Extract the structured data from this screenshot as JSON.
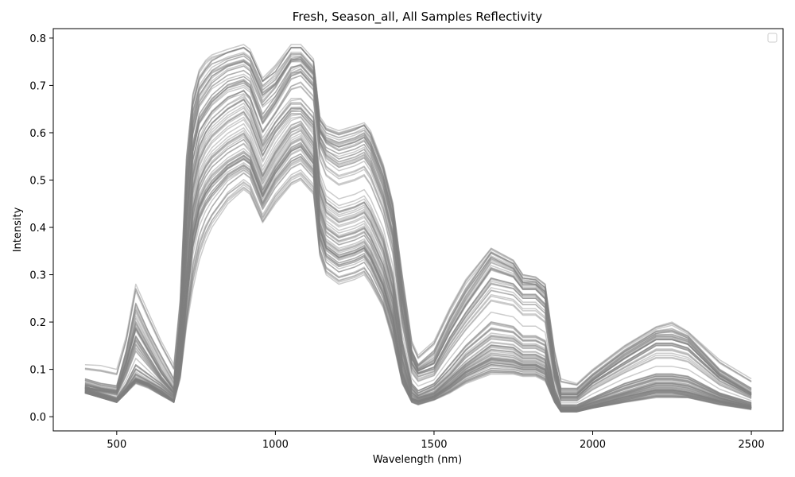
{
  "chart_data": {
    "type": "line",
    "title": "Fresh, Season_all, All Samples Reflectivity",
    "xlabel": "Wavelength (nm)",
    "ylabel": "Intensity",
    "xlim": [
      300,
      2600
    ],
    "ylim": [
      -0.03,
      0.82
    ],
    "xticks": [
      500,
      1000,
      1500,
      2000,
      2500
    ],
    "yticks": [
      0.0,
      0.1,
      0.2,
      0.3,
      0.4,
      0.5,
      0.6,
      0.7,
      0.8
    ],
    "grid": false,
    "legend": {
      "placement": "top-right",
      "entries": []
    },
    "line_color": "#808080",
    "line_alpha": 0.4,
    "series_count": 100,
    "x": [
      400,
      450,
      500,
      530,
      560,
      600,
      640,
      680,
      700,
      720,
      740,
      760,
      780,
      800,
      850,
      900,
      920,
      960,
      1000,
      1050,
      1080,
      1120,
      1140,
      1160,
      1200,
      1250,
      1280,
      1300,
      1340,
      1370,
      1400,
      1430,
      1450,
      1500,
      1550,
      1600,
      1680,
      1750,
      1780,
      1820,
      1850,
      1880,
      1900,
      1950,
      2000,
      2100,
      2200,
      2250,
      2300,
      2400,
      2500
    ],
    "series": [
      {
        "values": [
          0.11,
          0.108,
          0.1,
          0.17,
          0.28,
          0.22,
          0.16,
          0.11,
          0.25,
          0.55,
          0.68,
          0.73,
          0.75,
          0.76,
          0.77,
          0.78,
          0.77,
          0.71,
          0.74,
          0.78,
          0.78,
          0.75,
          0.63,
          0.61,
          0.6,
          0.61,
          0.615,
          0.6,
          0.53,
          0.45,
          0.3,
          0.16,
          0.13,
          0.16,
          0.23,
          0.29,
          0.355,
          0.33,
          0.3,
          0.295,
          0.28,
          0.14,
          0.08,
          0.07,
          0.1,
          0.15,
          0.19,
          0.2,
          0.18,
          0.12,
          0.08
        ]
      },
      {
        "values": [
          0.08,
          0.07,
          0.065,
          0.14,
          0.24,
          0.18,
          0.13,
          0.08,
          0.22,
          0.52,
          0.66,
          0.71,
          0.73,
          0.745,
          0.76,
          0.77,
          0.76,
          0.7,
          0.72,
          0.77,
          0.77,
          0.74,
          0.62,
          0.6,
          0.59,
          0.6,
          0.61,
          0.59,
          0.52,
          0.44,
          0.28,
          0.14,
          0.11,
          0.14,
          0.21,
          0.27,
          0.345,
          0.32,
          0.29,
          0.285,
          0.27,
          0.12,
          0.06,
          0.06,
          0.09,
          0.14,
          0.18,
          0.185,
          0.17,
          0.1,
          0.06
        ]
      },
      {
        "values": [
          0.07,
          0.06,
          0.055,
          0.12,
          0.2,
          0.15,
          0.1,
          0.06,
          0.2,
          0.48,
          0.62,
          0.68,
          0.7,
          0.72,
          0.74,
          0.75,
          0.74,
          0.68,
          0.7,
          0.75,
          0.75,
          0.72,
          0.6,
          0.58,
          0.57,
          0.58,
          0.59,
          0.57,
          0.5,
          0.42,
          0.26,
          0.13,
          0.1,
          0.12,
          0.19,
          0.25,
          0.33,
          0.31,
          0.28,
          0.28,
          0.26,
          0.11,
          0.05,
          0.05,
          0.08,
          0.13,
          0.17,
          0.17,
          0.16,
          0.09,
          0.05
        ]
      },
      {
        "values": [
          0.06,
          0.055,
          0.05,
          0.1,
          0.16,
          0.12,
          0.08,
          0.05,
          0.17,
          0.42,
          0.56,
          0.62,
          0.64,
          0.66,
          0.69,
          0.7,
          0.69,
          0.62,
          0.66,
          0.72,
          0.73,
          0.7,
          0.58,
          0.55,
          0.53,
          0.54,
          0.55,
          0.53,
          0.46,
          0.38,
          0.22,
          0.11,
          0.09,
          0.1,
          0.16,
          0.21,
          0.28,
          0.27,
          0.25,
          0.25,
          0.23,
          0.09,
          0.04,
          0.04,
          0.07,
          0.11,
          0.15,
          0.15,
          0.14,
          0.08,
          0.045
        ]
      },
      {
        "values": [
          0.065,
          0.05,
          0.04,
          0.07,
          0.11,
          0.09,
          0.07,
          0.045,
          0.15,
          0.38,
          0.52,
          0.58,
          0.61,
          0.63,
          0.66,
          0.68,
          0.66,
          0.58,
          0.62,
          0.66,
          0.66,
          0.63,
          0.5,
          0.46,
          0.44,
          0.45,
          0.46,
          0.44,
          0.38,
          0.3,
          0.16,
          0.07,
          0.055,
          0.07,
          0.11,
          0.15,
          0.2,
          0.19,
          0.17,
          0.17,
          0.16,
          0.06,
          0.025,
          0.025,
          0.04,
          0.07,
          0.09,
          0.09,
          0.085,
          0.05,
          0.03
        ]
      },
      {
        "values": [
          0.055,
          0.045,
          0.035,
          0.06,
          0.09,
          0.075,
          0.06,
          0.04,
          0.13,
          0.34,
          0.48,
          0.54,
          0.57,
          0.59,
          0.62,
          0.64,
          0.62,
          0.55,
          0.6,
          0.64,
          0.64,
          0.61,
          0.47,
          0.43,
          0.41,
          0.42,
          0.43,
          0.41,
          0.35,
          0.27,
          0.14,
          0.06,
          0.045,
          0.06,
          0.09,
          0.13,
          0.17,
          0.165,
          0.15,
          0.15,
          0.14,
          0.05,
          0.02,
          0.02,
          0.035,
          0.06,
          0.08,
          0.08,
          0.075,
          0.045,
          0.025
        ]
      },
      {
        "values": [
          0.06,
          0.048,
          0.038,
          0.055,
          0.08,
          0.07,
          0.055,
          0.035,
          0.12,
          0.3,
          0.44,
          0.5,
          0.53,
          0.55,
          0.58,
          0.6,
          0.58,
          0.51,
          0.56,
          0.61,
          0.62,
          0.58,
          0.44,
          0.4,
          0.38,
          0.39,
          0.4,
          0.38,
          0.32,
          0.25,
          0.12,
          0.05,
          0.04,
          0.05,
          0.08,
          0.11,
          0.15,
          0.145,
          0.13,
          0.13,
          0.12,
          0.045,
          0.018,
          0.018,
          0.03,
          0.05,
          0.07,
          0.07,
          0.065,
          0.04,
          0.022
        ]
      },
      {
        "values": [
          0.05,
          0.04,
          0.03,
          0.05,
          0.075,
          0.065,
          0.05,
          0.03,
          0.11,
          0.27,
          0.4,
          0.46,
          0.49,
          0.51,
          0.54,
          0.56,
          0.55,
          0.48,
          0.53,
          0.58,
          0.59,
          0.55,
          0.41,
          0.37,
          0.35,
          0.36,
          0.37,
          0.35,
          0.29,
          0.22,
          0.1,
          0.04,
          0.035,
          0.045,
          0.07,
          0.1,
          0.13,
          0.125,
          0.115,
          0.115,
          0.105,
          0.04,
          0.015,
          0.015,
          0.025,
          0.045,
          0.06,
          0.06,
          0.055,
          0.035,
          0.02
        ]
      },
      {
        "values": [
          0.055,
          0.045,
          0.035,
          0.06,
          0.08,
          0.07,
          0.05,
          0.035,
          0.1,
          0.24,
          0.36,
          0.42,
          0.45,
          0.47,
          0.51,
          0.53,
          0.52,
          0.45,
          0.5,
          0.54,
          0.55,
          0.52,
          0.38,
          0.34,
          0.32,
          0.33,
          0.34,
          0.32,
          0.26,
          0.19,
          0.08,
          0.035,
          0.03,
          0.04,
          0.06,
          0.085,
          0.11,
          0.105,
          0.1,
          0.1,
          0.09,
          0.035,
          0.012,
          0.012,
          0.02,
          0.035,
          0.05,
          0.05,
          0.045,
          0.03,
          0.018
        ]
      },
      {
        "values": [
          0.05,
          0.04,
          0.03,
          0.05,
          0.07,
          0.06,
          0.045,
          0.03,
          0.08,
          0.19,
          0.27,
          0.33,
          0.37,
          0.4,
          0.45,
          0.48,
          0.47,
          0.41,
          0.45,
          0.49,
          0.5,
          0.47,
          0.34,
          0.3,
          0.28,
          0.29,
          0.3,
          0.28,
          0.23,
          0.16,
          0.07,
          0.03,
          0.025,
          0.035,
          0.05,
          0.07,
          0.09,
          0.09,
          0.085,
          0.085,
          0.075,
          0.03,
          0.01,
          0.01,
          0.018,
          0.03,
          0.04,
          0.04,
          0.04,
          0.025,
          0.015
        ]
      }
    ]
  }
}
